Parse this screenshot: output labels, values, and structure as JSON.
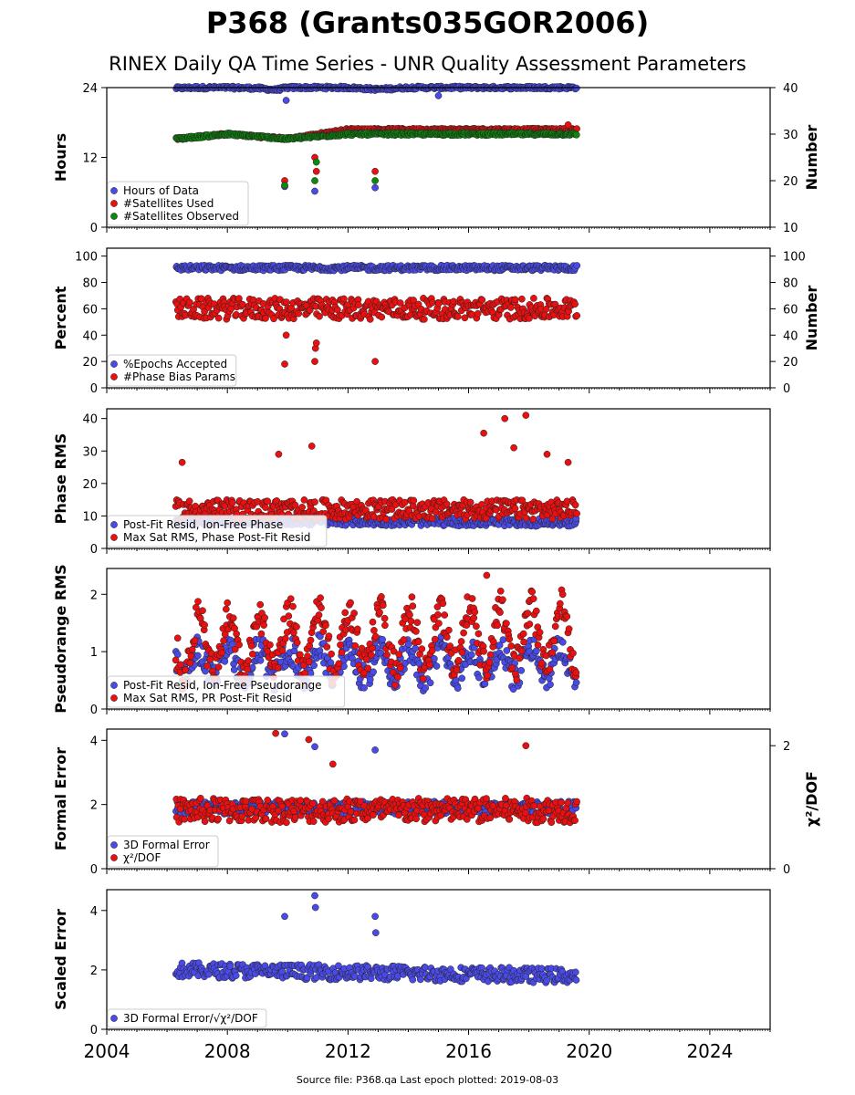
{
  "title": "P368 (Grants035GOR2006)",
  "subtitle": "RINEX Daily QA Time Series - UNR Quality Assessment Parameters",
  "footer": "Source file: P368.qa Last epoch plotted: 2019-08-03",
  "x_axis": {
    "range": [
      2004,
      2026
    ],
    "ticks": [
      2004,
      2008,
      2012,
      2016,
      2020,
      2024
    ]
  },
  "colors": {
    "blue": "#4a4ae6",
    "red": "#e81010",
    "green": "#0a8a0a",
    "darkred": "#8b0000"
  },
  "chart_data": [
    {
      "type": "scatter",
      "ylabel": "Hours",
      "y2label": "Number",
      "ylim": [
        0,
        24
      ],
      "yticks": [
        0,
        12,
        24
      ],
      "y2lim": [
        10,
        40
      ],
      "y2ticks": [
        10,
        20,
        30,
        40
      ],
      "legend": "bottom-left",
      "series": [
        {
          "name": "Hours of Data",
          "color": "#4a4ae6",
          "axis": "left",
          "x": [
            2006.3,
            2007.0,
            2008.0,
            2009.0,
            2009.6,
            2010.0,
            2011.0,
            2012.0,
            2013.0,
            2014.0,
            2015.0,
            2016.0,
            2017.0,
            2018.0,
            2019.0,
            2019.58
          ],
          "y": [
            23.9,
            24.0,
            24.0,
            23.9,
            23.6,
            24.0,
            24.0,
            24.0,
            23.7,
            24.0,
            24.0,
            24.0,
            24.0,
            24.0,
            24.0,
            24.0
          ],
          "outliers_x": [
            2009.9,
            2009.95,
            2010.9,
            2010.95,
            2012.9,
            2015.0
          ],
          "outliers_y": [
            7.0,
            21.8,
            6.2,
            16.0,
            6.8,
            22.6
          ]
        },
        {
          "name": "#Satellites Used",
          "color": "#e81010",
          "axis": "right",
          "x": [
            2006.3,
            2008.0,
            2010.0,
            2012.0,
            2014.0,
            2016.0,
            2018.0,
            2019.58
          ],
          "y": [
            29,
            30,
            29,
            31,
            31,
            31,
            31,
            31
          ],
          "outliers_x": [
            2009.9,
            2010.9,
            2010.95,
            2012.9,
            2019.3
          ],
          "outliers_y": [
            20,
            25,
            22,
            22,
            32
          ]
        },
        {
          "name": "#Satellites Observed",
          "color": "#0a8a0a",
          "axis": "right",
          "x": [
            2006.3,
            2008.0,
            2010.0,
            2012.0,
            2014.0,
            2016.0,
            2018.0,
            2019.58
          ],
          "y": [
            29,
            30,
            29,
            30,
            30,
            30,
            30,
            30
          ],
          "outliers_x": [
            2009.9,
            2010.9,
            2010.95,
            2012.9
          ],
          "outliers_y": [
            19,
            20,
            24,
            20
          ]
        }
      ]
    },
    {
      "type": "scatter",
      "ylabel": "Percent",
      "y2label": "Number",
      "ylim": [
        0,
        106
      ],
      "yticks": [
        0,
        20,
        40,
        60,
        80,
        100
      ],
      "y2lim": [
        0,
        106
      ],
      "y2ticks": [
        0,
        20,
        40,
        60,
        80,
        100
      ],
      "legend": "bottom-left",
      "series": [
        {
          "name": "%Epochs Accepted",
          "color": "#4a4ae6",
          "axis": "left",
          "x": [
            2006.3,
            2019.58
          ],
          "y": [
            91,
            91
          ],
          "spread": 2,
          "outliers_x": [],
          "outliers_y": []
        },
        {
          "name": "#Phase Bias Params",
          "color": "#e81010",
          "axis": "right",
          "x": [
            2006.3,
            2019.58
          ],
          "y": [
            60,
            60
          ],
          "spread": 8,
          "outliers_x": [
            2009.9,
            2009.95,
            2010.9,
            2010.92,
            2010.95,
            2012.9
          ],
          "outliers_y": [
            18,
            40,
            20,
            30,
            34,
            20
          ]
        }
      ]
    },
    {
      "type": "scatter",
      "ylabel": "Phase RMS",
      "ylim": [
        0,
        43
      ],
      "yticks": [
        0,
        10,
        20,
        30,
        40
      ],
      "legend": "bottom-left",
      "series": [
        {
          "name": "Post-Fit Resid, Ion-Free Phase",
          "color": "#4a4ae6",
          "axis": "left",
          "x": [
            2006.3,
            2019.58
          ],
          "y": [
            8.5,
            8.0
          ],
          "spread": 1.2,
          "outliers_x": [],
          "outliers_y": []
        },
        {
          "name": "Max Sat RMS, Phase Post-Fit Resid",
          "color": "#e81010",
          "axis": "left",
          "x": [
            2006.3,
            2019.58
          ],
          "y": [
            12,
            12
          ],
          "spread": 3,
          "outliers_x": [
            2006.5,
            2009.7,
            2010.8,
            2016.5,
            2017.2,
            2017.5,
            2017.9,
            2018.6,
            2019.3
          ],
          "outliers_y": [
            26.5,
            29.0,
            31.5,
            35.5,
            40.0,
            31.0,
            41.0,
            29.0,
            26.5
          ]
        }
      ]
    },
    {
      "type": "scatter",
      "ylabel": "Pseudorange RMS",
      "ylim": [
        0,
        2.45
      ],
      "yticks": [
        0,
        1,
        2
      ],
      "legend": "bottom-left",
      "series": [
        {
          "name": "Post-Fit Resid, Ion-Free Pseudorange",
          "color": "#4a4ae6",
          "axis": "left",
          "x": [
            2006.3,
            2019.58
          ],
          "y": [
            0.8,
            0.8
          ],
          "spread": 0.25,
          "seasonal_amp": 0.25,
          "outliers_x": [],
          "outliers_y": []
        },
        {
          "name": "Max Sat RMS, PR Post-Fit Resid",
          "color": "#e81010",
          "axis": "left",
          "x": [
            2006.3,
            2019.58
          ],
          "y": [
            1.1,
            1.3
          ],
          "spread": 0.3,
          "seasonal_amp": 0.5,
          "outliers_x": [
            2016.6
          ],
          "outliers_y": [
            2.33
          ]
        }
      ]
    },
    {
      "type": "scatter",
      "ylabel": "Formal Error",
      "y2label": "χ²/DOF",
      "ylim": [
        0,
        4.35
      ],
      "yticks": [
        0,
        2,
        4
      ],
      "y2lim": [
        0,
        2.27
      ],
      "y2ticks": [
        0,
        2
      ],
      "legend": "bottom-left",
      "series": [
        {
          "name": "3D Formal Error",
          "color": "#4a4ae6",
          "axis": "left",
          "x": [
            2006.3,
            2019.58
          ],
          "y": [
            1.9,
            1.9
          ],
          "spread": 0.2,
          "outliers_x": [
            2009.9,
            2010.9,
            2012.9
          ],
          "outliers_y": [
            4.2,
            3.8,
            3.7
          ]
        },
        {
          "name": "χ²/DOF",
          "color": "#e81010",
          "axis": "right",
          "x": [
            2006.3,
            2019.58
          ],
          "y": [
            0.95,
            0.95
          ],
          "spread": 0.2,
          "outliers_x": [
            2009.6,
            2010.7,
            2011.5,
            2017.9
          ],
          "outliers_y": [
            2.2,
            2.1,
            1.7,
            2.0
          ]
        }
      ]
    },
    {
      "type": "scatter",
      "ylabel": "Scaled Error",
      "ylim": [
        0,
        4.7
      ],
      "yticks": [
        0,
        2,
        4
      ],
      "legend": "bottom-left",
      "series": [
        {
          "name": "3D Formal Error/√χ²/DOF",
          "color": "#4a4ae6",
          "axis": "left",
          "x": [
            2006.3,
            2019.58
          ],
          "y": [
            2.0,
            1.8
          ],
          "spread": 0.25,
          "outliers_x": [
            2009.9,
            2010.9,
            2010.92,
            2012.9,
            2012.92
          ],
          "outliers_y": [
            3.8,
            4.5,
            4.1,
            3.8,
            3.25
          ]
        }
      ]
    }
  ]
}
